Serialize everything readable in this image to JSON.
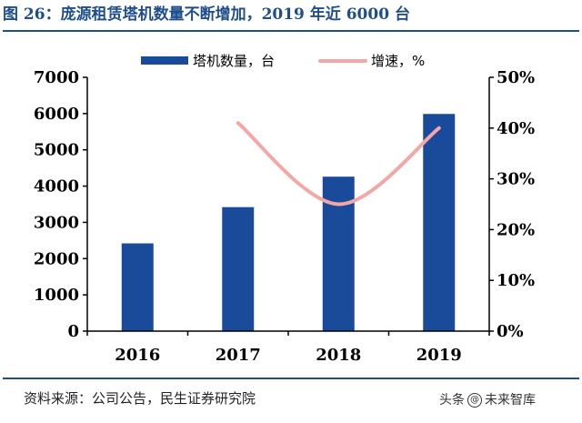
{
  "title": "图 26：庞源租赁塔机数量不断增加，2019 年近 6000 台",
  "source": "资料来源：公司公告，民生证券研究院",
  "watermark": {
    "prefix": "头条",
    "icon": "@",
    "name": "未来智库"
  },
  "colors": {
    "bar": "#1a4b9a",
    "line": "#f4a7a7",
    "axis": "#000000",
    "title": "#1f4e8c"
  },
  "chart_data": {
    "type": "bar+line",
    "categories": [
      "2016",
      "2017",
      "2018",
      "2019"
    ],
    "series": [
      {
        "name": "塔机数量，台",
        "type": "bar",
        "axis": "left",
        "values": [
          2420,
          3420,
          4260,
          5990
        ]
      },
      {
        "name": "增速，%",
        "type": "line",
        "axis": "right",
        "values": [
          null,
          41,
          25,
          40
        ]
      }
    ],
    "y_left": {
      "min": 0,
      "max": 7000,
      "ticks": [
        0,
        1000,
        2000,
        3000,
        4000,
        5000,
        6000,
        7000
      ]
    },
    "y_right": {
      "min": 0,
      "max": 50,
      "ticks": [
        "0%",
        "10%",
        "20%",
        "30%",
        "40%",
        "50%"
      ]
    },
    "grid": false,
    "legend": "top"
  }
}
